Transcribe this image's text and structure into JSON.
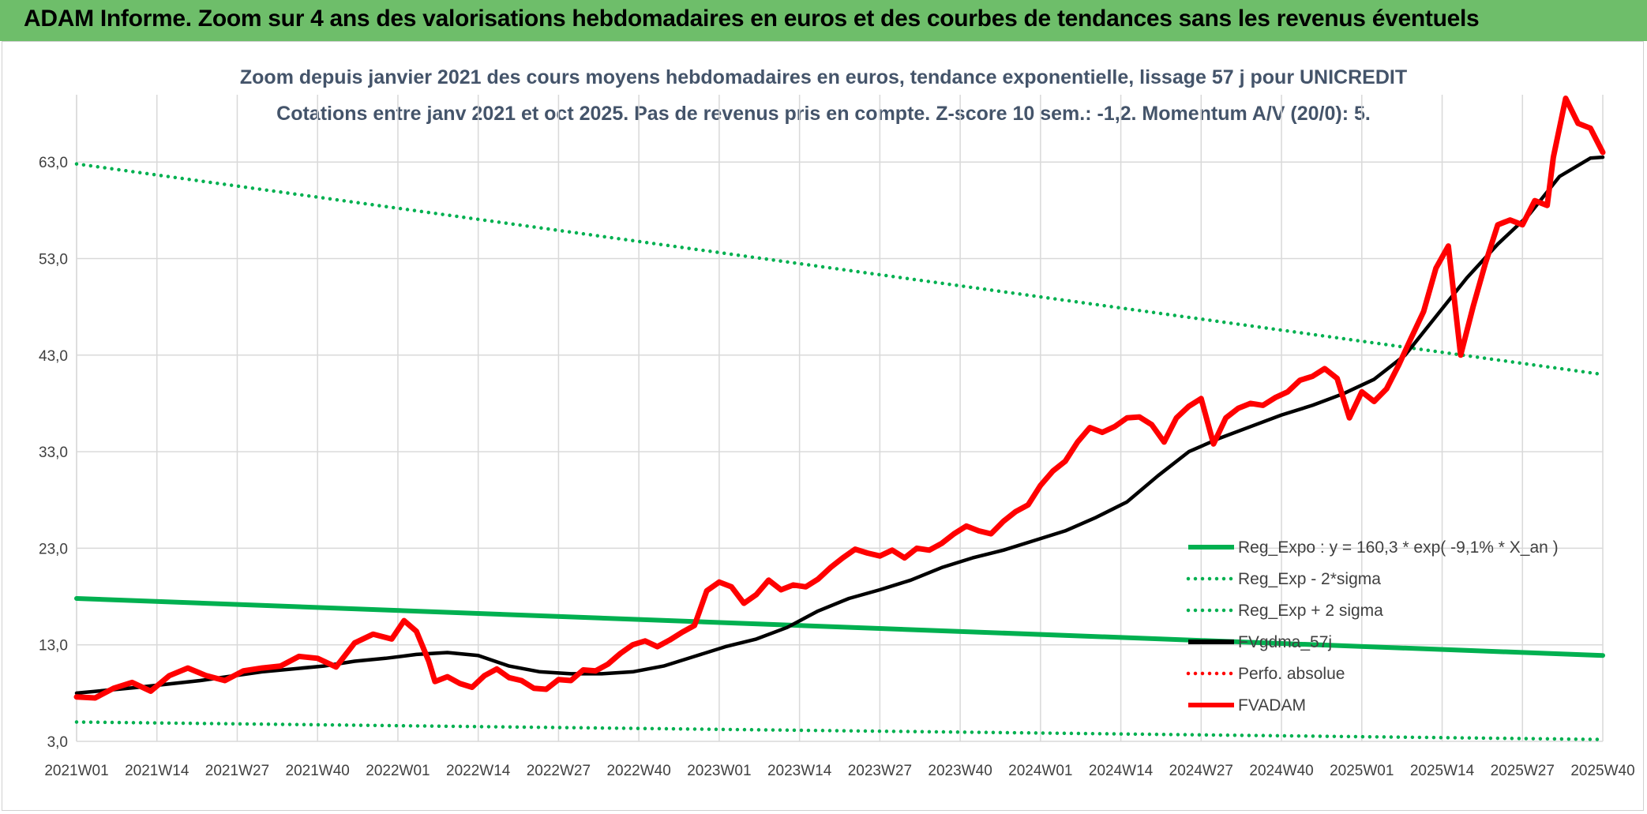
{
  "banner": {
    "title": "ADAM Informe. Zoom sur 4 ans des valorisations hebdomadaires en euros et des courbes de tendances sans les revenus éventuels"
  },
  "chart_data": {
    "type": "line",
    "title_line1": "Zoom depuis janvier 2021 des cours moyens hebdomadaires en euros, tendance exponentielle, lissage 57 j pour UNICREDIT",
    "title_line2": "Cotations entre janv 2021 et oct 2025. Pas de revenus pris en compte. Z-score 10 sem.: -1,2. Momentum A/V (20/0): 5.",
    "xlabel": "",
    "ylabel": "",
    "ylim": [
      3,
      68
    ],
    "y_ticks": [
      "3,0",
      "13,0",
      "23,0",
      "33,0",
      "43,0",
      "53,0",
      "63,0"
    ],
    "x_ticks": [
      "2021W01",
      "2021W14",
      "2021W27",
      "2021W40",
      "2022W01",
      "2022W14",
      "2022W27",
      "2022W40",
      "2023W01",
      "2023W14",
      "2023W27",
      "2023W40",
      "2024W01",
      "2024W14",
      "2024W27",
      "2024W40",
      "2025W01",
      "2025W14",
      "2025W27",
      "2025W40"
    ],
    "x_range_weeks": [
      0,
      247
    ],
    "grid": true,
    "legend_position": "bottom-right",
    "colors": {
      "green": "#00b050",
      "black": "#000000",
      "red": "#ff0000",
      "grid": "#d9d9d9"
    },
    "series": [
      {
        "name": "Reg_Expo : y = 160,3 * exp( -9,1% *  X_an )",
        "style": "solid",
        "color": "#00b050",
        "x": [
          0,
          247
        ],
        "values": [
          17.8,
          11.9
        ]
      },
      {
        "name": "Reg_Exp - 2*sigma",
        "style": "dotted",
        "color": "#00b050",
        "x": [
          0,
          247
        ],
        "values": [
          5.0,
          3.2
        ]
      },
      {
        "name": "Reg_Exp + 2 sigma",
        "style": "dotted",
        "color": "#00b050",
        "x": [
          0,
          247
        ],
        "values": [
          62.8,
          41.0
        ]
      },
      {
        "name": "FVgdma_57j",
        "style": "solid",
        "color": "#000000",
        "x": [
          0,
          10,
          20,
          30,
          40,
          45,
          50,
          55,
          60,
          65,
          70,
          75,
          80,
          85,
          90,
          95,
          100,
          105,
          110,
          115,
          120,
          125,
          130,
          135,
          140,
          145,
          150,
          155,
          160,
          165,
          170,
          175,
          180,
          185,
          190,
          195,
          200,
          205,
          210,
          215,
          220,
          225,
          230,
          235,
          240,
          245,
          247
        ],
        "values": [
          8.0,
          8.6,
          9.3,
          10.2,
          10.8,
          11.3,
          11.6,
          12.0,
          12.2,
          11.9,
          10.8,
          10.2,
          10.0,
          10.0,
          10.2,
          10.8,
          11.8,
          12.8,
          13.6,
          14.8,
          16.5,
          17.8,
          18.7,
          19.7,
          21.0,
          22.0,
          22.8,
          23.8,
          24.8,
          26.2,
          27.8,
          30.5,
          33.0,
          34.4,
          35.6,
          36.8,
          37.8,
          39.0,
          40.5,
          43.0,
          47.0,
          51.0,
          54.5,
          57.5,
          61.5,
          63.4,
          63.5
        ]
      },
      {
        "name": "Perfo. absolue",
        "style": "dotted",
        "color": "#ff0000",
        "x": [],
        "values": []
      },
      {
        "name": "FVADAM",
        "style": "solid",
        "color": "#ff0000",
        "x": [
          0,
          3,
          6,
          9,
          12,
          15,
          18,
          21,
          24,
          27,
          30,
          33,
          36,
          39,
          42,
          45,
          48,
          51,
          53,
          55,
          57,
          58,
          60,
          62,
          64,
          66,
          68,
          70,
          72,
          74,
          76,
          78,
          80,
          82,
          84,
          86,
          88,
          90,
          92,
          94,
          96,
          98,
          100,
          102,
          104,
          106,
          108,
          110,
          112,
          114,
          116,
          118,
          120,
          122,
          124,
          126,
          128,
          130,
          132,
          134,
          136,
          138,
          140,
          142,
          144,
          146,
          148,
          150,
          152,
          154,
          156,
          158,
          160,
          162,
          164,
          166,
          168,
          170,
          172,
          174,
          176,
          178,
          180,
          182,
          184,
          186,
          188,
          190,
          192,
          194,
          196,
          198,
          200,
          202,
          204,
          206,
          208,
          210,
          212,
          214,
          216,
          218,
          220,
          222,
          224,
          226,
          228,
          230,
          232,
          234,
          236,
          238,
          239,
          241,
          243,
          245,
          247
        ],
        "values": [
          7.6,
          7.5,
          8.5,
          9.1,
          8.2,
          9.8,
          10.6,
          9.8,
          9.3,
          10.3,
          10.6,
          10.8,
          11.8,
          11.6,
          10.7,
          13.2,
          14.1,
          13.6,
          15.5,
          14.4,
          11.3,
          9.2,
          9.7,
          9.0,
          8.6,
          9.8,
          10.5,
          9.6,
          9.3,
          8.5,
          8.4,
          9.4,
          9.3,
          10.4,
          10.3,
          11.0,
          12.1,
          13.0,
          13.4,
          12.8,
          13.5,
          14.3,
          15.0,
          18.6,
          19.5,
          19.0,
          17.3,
          18.2,
          19.7,
          18.7,
          19.2,
          19.0,
          19.8,
          21.0,
          22.0,
          22.9,
          22.5,
          22.2,
          22.8,
          22.0,
          23.0,
          22.8,
          23.5,
          24.5,
          25.3,
          24.8,
          24.5,
          25.8,
          26.8,
          27.5,
          29.5,
          31.0,
          32.0,
          34.0,
          35.5,
          35.0,
          35.6,
          36.5,
          36.6,
          35.8,
          34.0,
          36.5,
          37.7,
          38.5,
          33.8,
          36.5,
          37.5,
          38.0,
          37.8,
          38.6,
          39.2,
          40.4,
          40.8,
          41.6,
          40.6,
          36.5,
          39.2,
          38.2,
          39.5,
          42.0,
          44.8,
          47.5,
          52.0,
          54.3,
          43.0,
          48.0,
          52.5,
          56.5,
          57.0,
          56.5,
          59.0,
          58.5,
          63.5,
          69.6,
          67.0,
          66.5,
          64.0
        ]
      }
    ]
  }
}
